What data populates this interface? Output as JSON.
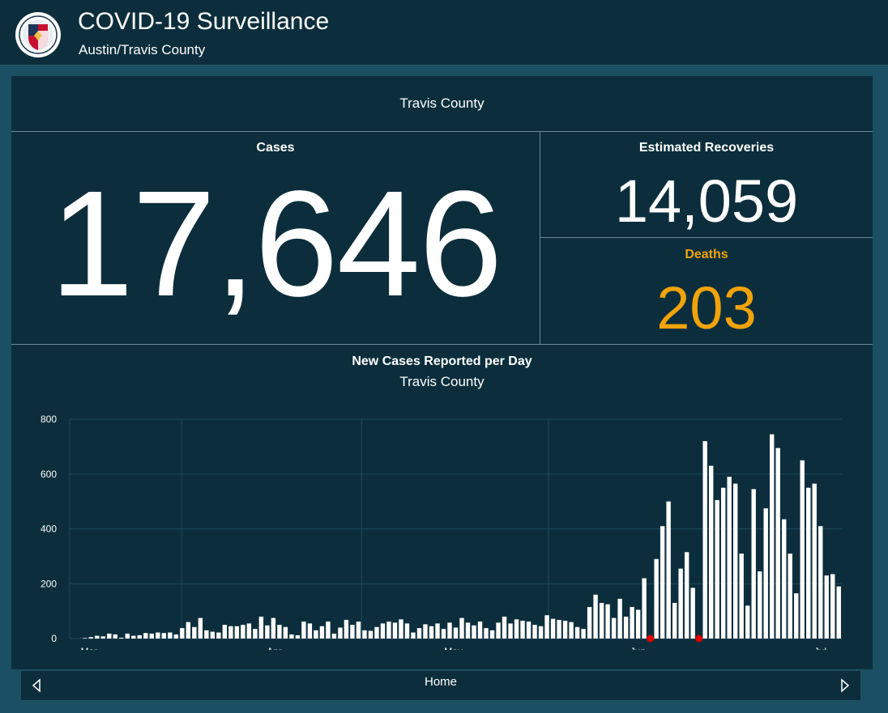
{
  "header": {
    "title": "COVID-19 Surveillance",
    "subtitle": "Austin/Travis County",
    "logo_icon": "city-of-austin-seal"
  },
  "panel": {
    "county": "Travis County",
    "cases": {
      "label": "Cases",
      "value": "17,646"
    },
    "recoveries": {
      "label": "Estimated Recoveries",
      "value": "14,059"
    },
    "deaths": {
      "label": "Deaths",
      "value": "203",
      "color": "#f0a30a"
    }
  },
  "chart": {
    "title": "New Cases Reported per Day",
    "subtitle": "Travis County"
  },
  "chart_data": {
    "type": "bar",
    "title": "New Cases Reported per Day",
    "subtitle": "Travis County",
    "xlabel": "",
    "ylabel": "",
    "ylim": [
      0,
      800
    ],
    "yticks": [
      0,
      200,
      400,
      600,
      800
    ],
    "x_tick_labels": [
      "Mar",
      "Apr",
      "May",
      "Jun",
      "Jul"
    ],
    "grid": true,
    "bar_color": "#ffffff",
    "marker_color": "#e00000",
    "values": [
      0,
      0,
      2,
      5,
      10,
      8,
      18,
      15,
      3,
      18,
      10,
      12,
      20,
      18,
      22,
      20,
      22,
      15,
      38,
      60,
      42,
      75,
      30,
      25,
      22,
      50,
      45,
      45,
      50,
      55,
      35,
      80,
      48,
      75,
      50,
      42,
      15,
      12,
      62,
      55,
      30,
      45,
      62,
      18,
      40,
      68,
      50,
      62,
      30,
      28,
      42,
      55,
      62,
      58,
      70,
      55,
      22,
      38,
      52,
      45,
      55,
      35,
      58,
      40,
      75,
      58,
      48,
      62,
      38,
      30,
      58,
      80,
      55,
      70,
      65,
      62,
      50,
      45,
      85,
      72,
      68,
      65,
      60,
      42,
      35,
      115,
      160,
      130,
      125,
      75,
      145,
      80,
      115,
      105,
      220,
      0,
      290,
      410,
      500,
      130,
      255,
      315,
      185,
      0,
      720,
      630,
      505,
      550,
      590,
      565,
      310,
      120,
      545,
      245,
      475,
      745,
      695,
      435,
      310,
      165,
      650,
      550,
      565,
      410,
      230,
      235,
      190
    ],
    "markers_at_index": [
      95,
      103
    ],
    "markers_value": 0
  },
  "footer": {
    "label": "Home",
    "prev_icon": "chevron-left-icon",
    "next_icon": "chevron-right-icon"
  }
}
